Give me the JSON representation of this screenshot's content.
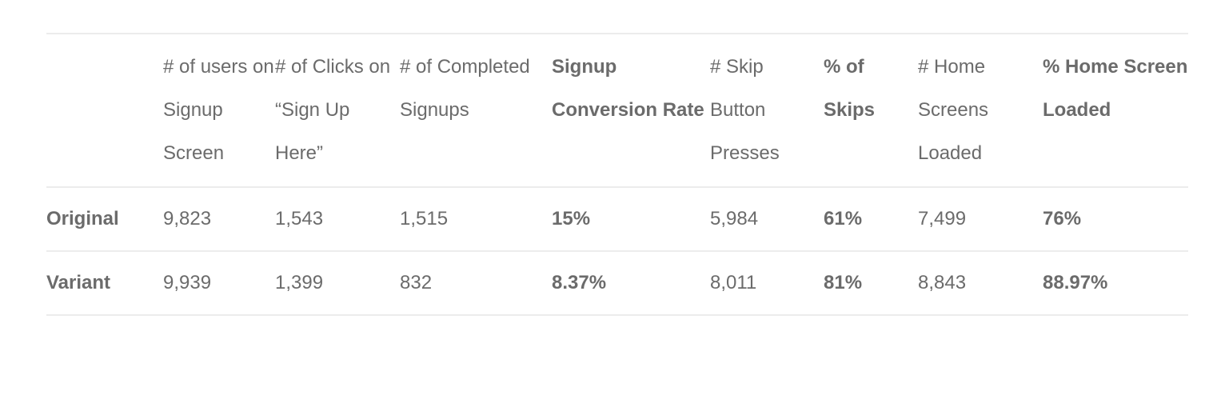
{
  "headers": [
    {
      "label": "",
      "bold": false
    },
    {
      "label": "# of users on Signup Screen",
      "bold": false
    },
    {
      "label": "# of Clicks on “Sign Up Here”",
      "bold": false
    },
    {
      "label": "# of Completed Signups",
      "bold": false
    },
    {
      "label": "Signup Conversion Rate",
      "bold": true
    },
    {
      "label": "# Skip Button Presses",
      "bold": false
    },
    {
      "label": "% of Skips",
      "bold": true
    },
    {
      "label": "# Home Screens Loaded",
      "bold": false
    },
    {
      "label": "% Home Screen Loaded",
      "bold": true
    }
  ],
  "rows": [
    [
      "Original",
      "9,823",
      "1,543",
      "1,515",
      "15%",
      "5,984",
      "61%",
      "7,499",
      "76%"
    ],
    [
      "Variant",
      "9,939",
      "1,399",
      "832",
      "8.37%",
      "8,011",
      "81%",
      "8,843",
      "88.97%"
    ]
  ]
}
